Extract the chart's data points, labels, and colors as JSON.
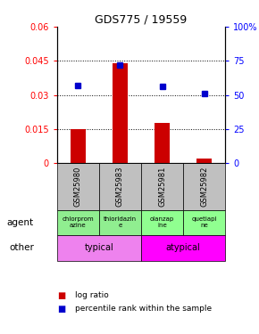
{
  "title": "GDS775 / 19559",
  "samples": [
    "GSM25980",
    "GSM25983",
    "GSM25981",
    "GSM25982"
  ],
  "log_ratio": [
    0.0148,
    0.044,
    0.0175,
    0.002
  ],
  "percentile_rank": [
    57,
    72,
    56,
    51
  ],
  "ylim_left": [
    0,
    0.06
  ],
  "ylim_right": [
    0,
    100
  ],
  "yticks_left": [
    0,
    0.015,
    0.03,
    0.045,
    0.06
  ],
  "yticks_right": [
    0,
    25,
    50,
    75,
    100
  ],
  "ytick_labels_left": [
    "0",
    "0.015",
    "0.03",
    "0.045",
    "0.06"
  ],
  "ytick_labels_right": [
    "0",
    "25",
    "50",
    "75",
    "100%"
  ],
  "agent_labels": [
    "chlorprom\nazine",
    "thioridazin\ne",
    "olanzap\nine",
    "quetiapi\nne"
  ],
  "agent_color_typical": "#90EE90",
  "agent_color_atypical": "#90FF90",
  "typical_color": "#EE82EE",
  "atypical_color": "#FF00FF",
  "bar_color": "#CC0000",
  "dot_color": "#0000CC",
  "typical_label": "typical",
  "atypical_label": "atypical",
  "xlabel_agent": "agent",
  "xlabel_other": "other",
  "legend_bar": "log ratio",
  "legend_dot": "percentile rank within the sample",
  "grid_yticks": [
    0.015,
    0.03,
    0.045
  ],
  "sample_bg_color": "#C0C0C0",
  "n_samples": 4
}
